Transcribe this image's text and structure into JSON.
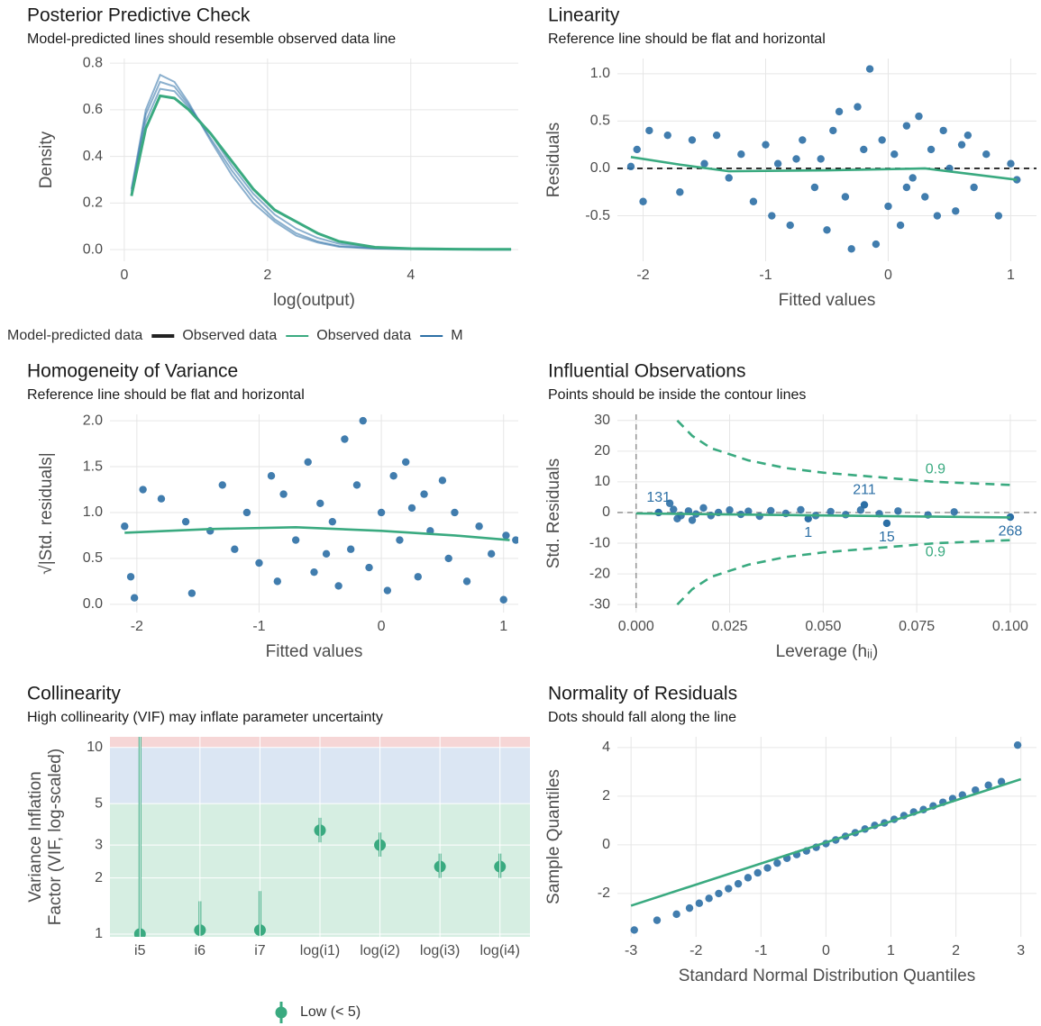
{
  "chart_data": [
    {
      "type": "line",
      "title": "Posterior Predictive Check",
      "subtitle": "Model-predicted lines should resemble observed data line",
      "xlabel": "log(output)",
      "ylabel": "Density",
      "xlim": [
        -0.2,
        5.5
      ],
      "ylim": [
        -0.05,
        0.82
      ],
      "xticks": [
        0,
        2,
        4
      ],
      "yticks": [
        {
          "value": 0,
          "label": "0.0"
        },
        0.2,
        0.4,
        0.6,
        0.8
      ],
      "grid": true,
      "x": [
        0.1,
        0.3,
        0.5,
        0.7,
        0.9,
        1.2,
        1.5,
        1.8,
        2.1,
        2.4,
        2.7,
        3.0,
        3.5,
        4.0,
        4.5,
        5.0,
        5.4
      ],
      "series": [
        {
          "color": "#2c6fa5",
          "values": [
            0.25,
            0.58,
            0.72,
            0.7,
            0.62,
            0.48,
            0.34,
            0.22,
            0.13,
            0.07,
            0.035,
            0.015,
            0.005,
            0.002,
            0.001,
            0,
            0
          ]
        },
        {
          "color": "#2c6fa5",
          "values": [
            0.24,
            0.55,
            0.69,
            0.68,
            0.61,
            0.5,
            0.36,
            0.24,
            0.15,
            0.09,
            0.05,
            0.025,
            0.008,
            0.003,
            0.001,
            0,
            0
          ]
        },
        {
          "color": "#2c6fa5",
          "values": [
            0.26,
            0.6,
            0.75,
            0.72,
            0.63,
            0.47,
            0.32,
            0.2,
            0.12,
            0.06,
            0.03,
            0.012,
            0.004,
            0.001,
            0,
            0,
            0
          ]
        },
        {
          "color": "#3aaa80",
          "values": [
            0.23,
            0.52,
            0.66,
            0.65,
            0.6,
            0.5,
            0.38,
            0.26,
            0.17,
            0.12,
            0.07,
            0.035,
            0.01,
            0.004,
            0.002,
            0.001,
            0.001
          ]
        }
      ],
      "legend": [
        {
          "label": "Model-predicted data"
        },
        {
          "label": "Observed data",
          "color": "#222222"
        },
        {
          "label": "Observed data",
          "color": "#3aaa80"
        },
        {
          "label": "M",
          "color": "#2c6fa5"
        }
      ]
    },
    {
      "type": "scatter",
      "title": "Linearity",
      "subtitle": "Reference line should be flat and horizontal",
      "xlabel": "Fitted values",
      "ylabel": "Residuals",
      "xlim": [
        -2.21,
        1.21
      ],
      "ylim": [
        -0.98,
        1.16
      ],
      "xticks": [
        -2,
        -1,
        0,
        1
      ],
      "yticks": [
        {
          "value": 1,
          "label": "1.0"
        },
        0.5,
        {
          "value": 0,
          "label": "0.0"
        },
        -0.5
      ],
      "grid": true,
      "points": {
        "color": "#2c6fa5",
        "x": [
          -2.1,
          -2.05,
          -2.0,
          -1.95,
          -1.8,
          -1.7,
          -1.6,
          -1.5,
          -1.4,
          -1.3,
          -1.2,
          -1.1,
          -1.0,
          -0.95,
          -0.9,
          -0.8,
          -0.7,
          -0.6,
          -0.55,
          -0.5,
          -0.4,
          -0.35,
          -0.3,
          -0.25,
          -0.2,
          -0.15,
          -0.1,
          -0.05,
          0.0,
          0.05,
          0.1,
          0.15,
          0.2,
          0.25,
          0.3,
          0.35,
          0.4,
          0.45,
          0.5,
          0.55,
          0.6,
          0.7,
          0.8,
          0.9,
          1.0,
          1.05,
          -0.45,
          0.15,
          -0.75,
          0.65
        ],
        "y": [
          0.02,
          0.2,
          -0.35,
          0.4,
          0.35,
          -0.25,
          0.3,
          0.05,
          0.35,
          -0.1,
          0.15,
          -0.35,
          0.25,
          -0.5,
          0.05,
          -0.6,
          0.3,
          -0.2,
          0.1,
          -0.65,
          0.6,
          -0.3,
          -0.85,
          0.65,
          0.2,
          1.05,
          -0.8,
          0.3,
          -0.4,
          0.15,
          -0.6,
          0.45,
          -0.1,
          0.55,
          -0.3,
          0.2,
          -0.5,
          0.4,
          0.0,
          -0.45,
          0.25,
          -0.2,
          0.15,
          -0.5,
          0.05,
          -0.12,
          0.4,
          -0.2,
          0.1,
          0.35
        ]
      },
      "reference_lines": [
        {
          "axis": "y",
          "value": 0,
          "color": "#000000",
          "dashed": true
        }
      ],
      "lines": [
        {
          "color": "#3aaa80",
          "x": [
            -2.1,
            -1.7,
            -1.3,
            -0.5,
            0.3,
            1.05
          ],
          "y": [
            0.12,
            0.04,
            -0.03,
            -0.02,
            0.0,
            -0.12
          ]
        }
      ]
    },
    {
      "type": "scatter",
      "title": "Homogeneity of Variance",
      "subtitle": "Reference line should be flat and horizontal",
      "xlabel": "Fitted values",
      "ylabel": "√|Std. residuals|",
      "xlim": [
        -2.22,
        1.12
      ],
      "ylim": [
        -0.09,
        2.07
      ],
      "xticks": [
        -2,
        -1,
        0,
        1
      ],
      "yticks": [
        {
          "value": 2,
          "label": "2.0"
        },
        1.5,
        {
          "value": 1,
          "label": "1.0"
        },
        0.5,
        {
          "value": 0,
          "label": "0.0"
        }
      ],
      "grid": true,
      "points": {
        "color": "#2c6fa5",
        "x": [
          -2.1,
          -2.05,
          -2.02,
          -1.95,
          -1.8,
          -1.6,
          -1.55,
          -1.4,
          -1.3,
          -1.2,
          -1.1,
          -1.0,
          -0.9,
          -0.85,
          -0.8,
          -0.7,
          -0.6,
          -0.55,
          -0.5,
          -0.4,
          -0.35,
          -0.3,
          -0.25,
          -0.2,
          -0.15,
          -0.1,
          0.0,
          0.05,
          0.1,
          0.15,
          0.2,
          0.3,
          0.35,
          0.4,
          0.5,
          0.55,
          0.6,
          0.7,
          0.8,
          0.9,
          1.0,
          1.02,
          1.1,
          -0.45,
          0.25
        ],
        "y": [
          0.85,
          0.3,
          0.07,
          1.25,
          1.15,
          0.9,
          0.12,
          0.8,
          1.3,
          0.6,
          1.0,
          0.45,
          1.4,
          0.25,
          1.2,
          0.7,
          1.55,
          0.35,
          1.1,
          0.9,
          0.2,
          1.8,
          0.6,
          1.3,
          2.0,
          0.4,
          1.0,
          0.15,
          1.4,
          0.7,
          1.55,
          0.3,
          1.2,
          0.8,
          1.35,
          0.5,
          1.0,
          0.25,
          0.85,
          0.55,
          0.05,
          0.75,
          0.7,
          0.55,
          1.05
        ]
      },
      "lines": [
        {
          "color": "#3aaa80",
          "x": [
            -2.1,
            -1.4,
            -0.7,
            0.0,
            0.6,
            1.05
          ],
          "y": [
            0.78,
            0.82,
            0.84,
            0.8,
            0.75,
            0.7
          ]
        }
      ]
    },
    {
      "type": "scatter",
      "title": "Influential Observations",
      "subtitle": "Points should be inside the contour lines",
      "xlabel": "Leverage (hᵢᵢ)",
      "ylabel": "Std. Residuals",
      "xlim": [
        -0.005,
        0.107
      ],
      "ylim": [
        -32.6,
        32
      ],
      "xticks": [
        {
          "value": 0,
          "label": "0.000"
        },
        {
          "value": 0.025,
          "label": "0.025"
        },
        {
          "value": 0.05,
          "label": "0.050"
        },
        {
          "value": 0.075,
          "label": "0.075"
        },
        {
          "value": 0.1,
          "label": "0.100"
        }
      ],
      "yticks": [
        30,
        20,
        10,
        0,
        -10,
        -20,
        -30
      ],
      "grid": true,
      "points": {
        "color": "#2c6fa5",
        "x": [
          0.009,
          0.01,
          0.011,
          0.012,
          0.014,
          0.015,
          0.016,
          0.018,
          0.02,
          0.022,
          0.025,
          0.028,
          0.03,
          0.033,
          0.036,
          0.04,
          0.044,
          0.048,
          0.052,
          0.056,
          0.06,
          0.065,
          0.07,
          0.078,
          0.085
        ],
        "y": [
          3,
          1,
          -2,
          -1,
          0.5,
          -2.5,
          -0.5,
          1.5,
          -1,
          0,
          0.8,
          -0.6,
          0.4,
          -1.2,
          0.6,
          -0.3,
          0.9,
          -1,
          0.3,
          -0.7,
          0.8,
          -0.4,
          0.5,
          -0.8,
          0.2
        ]
      },
      "labeled_points": {
        "labels": [
          "131",
          "1",
          "211",
          "15",
          "268"
        ],
        "x": [
          0.006,
          0.046,
          0.061,
          0.067,
          0.1
        ],
        "y": [
          0,
          -2,
          2.5,
          -3.5,
          -1.5
        ]
      },
      "reference_lines": [
        {
          "axis": "x",
          "value": 0,
          "color": "#9a9a9a",
          "dashed": true
        },
        {
          "axis": "y",
          "value": 0,
          "color": "#9a9a9a",
          "dashed": true
        }
      ],
      "lines": [
        {
          "color": "#3aaa80",
          "x": [
            0,
            0.1
          ],
          "y": [
            -0.3,
            -1.6
          ]
        },
        {
          "color": "#3aaa80",
          "dashed": true,
          "x": [
            0.011,
            0.015,
            0.02,
            0.03,
            0.04,
            0.05,
            0.06,
            0.07,
            0.08,
            0.09,
            0.1
          ],
          "y": [
            30,
            25,
            21,
            17,
            14.5,
            13,
            12,
            11,
            10,
            9.5,
            9
          ]
        },
        {
          "color": "#3aaa80",
          "dashed": true,
          "x": [
            0.011,
            0.015,
            0.02,
            0.03,
            0.04,
            0.05,
            0.06,
            0.07,
            0.08,
            0.09,
            0.1
          ],
          "y": [
            -30,
            -25,
            -21,
            -17,
            -14.5,
            -13,
            -12,
            -11,
            -10,
            -9.5,
            -9
          ]
        }
      ],
      "contour_labels": {
        "color": "#3aaa80",
        "labels": [
          "0.9",
          "0.9"
        ],
        "x": [
          0.08,
          0.08
        ],
        "y": [
          14,
          -13
        ]
      }
    },
    {
      "type": "errorbar",
      "title": "Collinearity",
      "subtitle": "High collinearity (VIF) may inflate parameter uncertainty",
      "ylabel": [
        "Variance Inflation",
        "Factor (VIF, log-scaled)"
      ],
      "log": true,
      "ylim": [
        0.967,
        11.4
      ],
      "yticks": [
        1,
        2,
        3,
        5,
        10
      ],
      "grid": true,
      "thresholds": [
        5,
        10
      ],
      "band_colors": [
        "#d6eee2",
        "#dbe6f3",
        "#f6d6d6"
      ],
      "categories": [
        "i5",
        "i6",
        "i7",
        "log(i1)",
        "log(i2)",
        "log(i3)",
        "log(i4)"
      ],
      "values": [
        1.0,
        1.05,
        1.05,
        3.6,
        3.0,
        2.3,
        2.3
      ],
      "ci_low": [
        1.0,
        1.0,
        1.0,
        3.1,
        2.6,
        2.0,
        2.0
      ],
      "ci_high": [
        15,
        1.5,
        1.7,
        4.2,
        3.5,
        2.7,
        2.7
      ],
      "color": "#3aaa80",
      "legend": [
        {
          "label": "Low (< 5)",
          "color": "#3aaa80"
        }
      ]
    },
    {
      "type": "scatter",
      "title": "Normality of Residuals",
      "subtitle": "Dots should fall along the line",
      "xlabel": "Standard Normal Distribution Quantiles",
      "ylabel": "Sample Quantiles",
      "xlim": [
        -3.21,
        3.24
      ],
      "ylim": [
        -3.78,
        4.44
      ],
      "xticks": [
        -3,
        -2,
        -1,
        0,
        1,
        2,
        3
      ],
      "yticks": [
        -2,
        0,
        2,
        4
      ],
      "grid": true,
      "points": {
        "color": "#2c6fa5",
        "x": [
          -2.95,
          -2.6,
          -2.3,
          -2.1,
          -1.95,
          -1.8,
          -1.65,
          -1.5,
          -1.35,
          -1.2,
          -1.05,
          -0.9,
          -0.75,
          -0.6,
          -0.45,
          -0.3,
          -0.15,
          0,
          0.15,
          0.3,
          0.45,
          0.6,
          0.75,
          0.9,
          1.05,
          1.2,
          1.35,
          1.5,
          1.65,
          1.8,
          1.95,
          2.1,
          2.3,
          2.5,
          2.7,
          2.95
        ],
        "y": [
          -3.5,
          -3.1,
          -2.85,
          -2.6,
          -2.4,
          -2.2,
          -2.0,
          -1.8,
          -1.6,
          -1.35,
          -1.15,
          -0.95,
          -0.75,
          -0.55,
          -0.4,
          -0.25,
          -0.1,
          0.05,
          0.2,
          0.35,
          0.5,
          0.65,
          0.8,
          0.9,
          1.05,
          1.2,
          1.35,
          1.45,
          1.6,
          1.75,
          1.9,
          2.05,
          2.25,
          2.45,
          2.6,
          4.1
        ]
      },
      "lines": [
        {
          "color": "#3aaa80",
          "x": [
            -3,
            3
          ],
          "y": [
            -2.5,
            2.7
          ]
        }
      ]
    }
  ]
}
